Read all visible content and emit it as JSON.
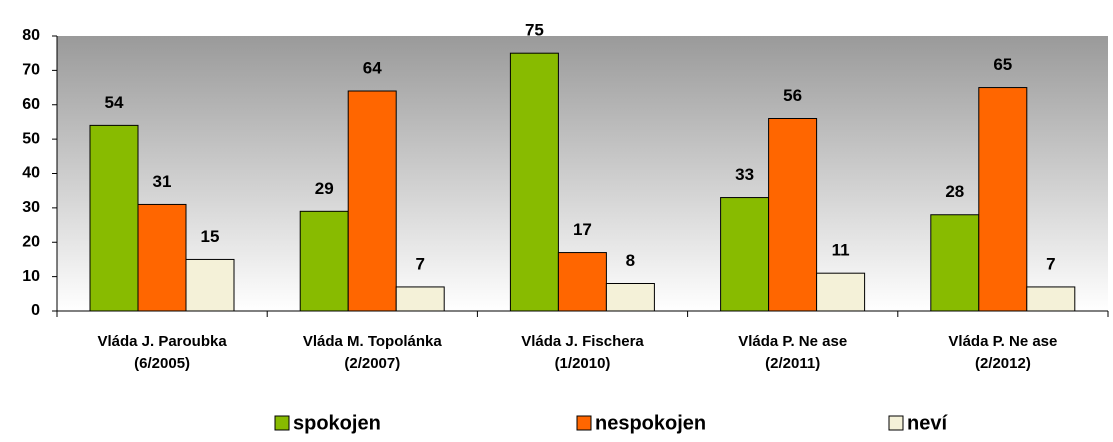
{
  "chart_data": {
    "type": "bar",
    "categories": [
      [
        "Vláda J. Paroubka",
        "(6/2005)"
      ],
      [
        "Vláda M. Topolánka",
        "(2/2007)"
      ],
      [
        "Vláda J. Fischera",
        "(1/2010)"
      ],
      [
        "Vláda P. Ne ase",
        "(2/2011)"
      ],
      [
        "Vláda P. Ne ase",
        "(2/2012)"
      ]
    ],
    "series": [
      {
        "name": "spokojen",
        "color": "#88bb00",
        "values": [
          54,
          29,
          75,
          33,
          28
        ]
      },
      {
        "name": "nespokojen",
        "color": "#ff6600",
        "values": [
          31,
          64,
          17,
          56,
          65
        ]
      },
      {
        "name": "neví",
        "color": "#f4f1d8",
        "values": [
          15,
          7,
          8,
          11,
          7
        ]
      }
    ],
    "ylim": [
      0,
      80
    ],
    "yticks": [
      0,
      10,
      20,
      30,
      40,
      50,
      60,
      70,
      80
    ],
    "legend": "bottom"
  }
}
